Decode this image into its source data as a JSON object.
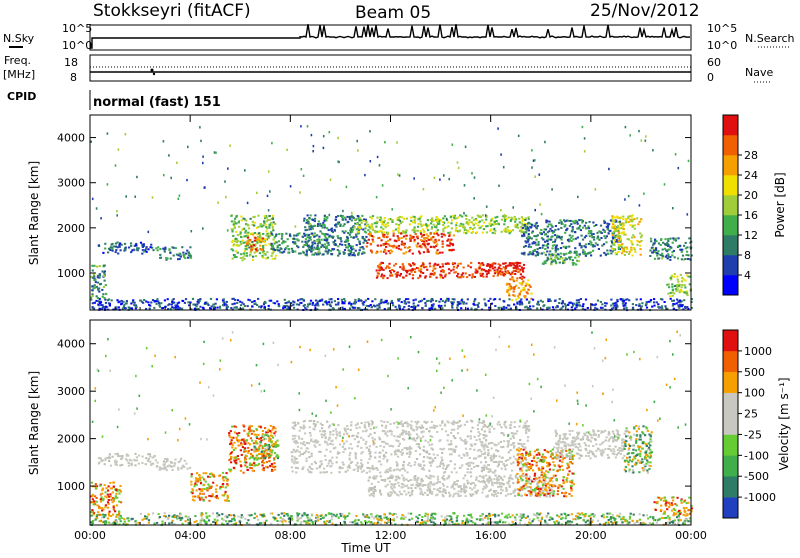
{
  "header": {
    "station": "Stokkseyri (fitACF)",
    "beam": "Beam 05",
    "date": "25/Nov/2012"
  },
  "strips": {
    "nsky_label": "N.Sky",
    "nsearch_label": "N.Search",
    "freq_label": "Freq.",
    "freq_unit": "[MHz]",
    "nave_label": "Nave",
    "cpid_label": "CPID",
    "cpid_text": "normal (fast) 151",
    "noise_ticks_left": [
      "10^5",
      "10^0"
    ],
    "noise_ticks_right": [
      "10^5",
      "10^0"
    ],
    "freq_ticks_left": [
      "18",
      "8"
    ],
    "nave_ticks_right": [
      "60",
      "0"
    ]
  },
  "chart_data": [
    {
      "type": "heatmap",
      "name": "power",
      "ylabel": "Slant Range [km]",
      "ylim": [
        180,
        4500
      ],
      "yticks": [
        "1000",
        "2000",
        "3000",
        "4000"
      ],
      "xlim": [
        0,
        24
      ],
      "xticks": [
        "00:00",
        "04:00",
        "08:00",
        "12:00",
        "16:00",
        "20:00",
        "00:00"
      ],
      "colorbar": {
        "label": "Power [dB]",
        "ticks": [
          "4",
          "8",
          "12",
          "16",
          "20",
          "24",
          "28"
        ],
        "range": [
          0,
          30
        ],
        "colors": [
          "#0000ff",
          "#1f3fae",
          "#2e7b66",
          "#3fae4b",
          "#9fce3a",
          "#f0e000",
          "#f5a000",
          "#f06000",
          "#e01010"
        ]
      },
      "regions": [
        {
          "x0": 0.3,
          "x1": 2.5,
          "y0": 1450,
          "y1": 1700,
          "v": 6
        },
        {
          "x0": 2.6,
          "x1": 4.0,
          "y0": 1300,
          "y1": 1600,
          "v": 8
        },
        {
          "x0": 5.6,
          "x1": 7.4,
          "y0": 1300,
          "y1": 2300,
          "v": 14
        },
        {
          "x0": 6.2,
          "x1": 6.9,
          "y0": 1500,
          "y1": 1900,
          "v": 24
        },
        {
          "x0": 7.2,
          "x1": 9.5,
          "y0": 1450,
          "y1": 1900,
          "v": 9
        },
        {
          "x0": 8.5,
          "x1": 11.0,
          "y0": 1400,
          "y1": 2300,
          "v": 8
        },
        {
          "x0": 10.5,
          "x1": 17.5,
          "y0": 1900,
          "y1": 2300,
          "v": 15
        },
        {
          "x0": 11.0,
          "x1": 14.5,
          "y0": 1450,
          "y1": 1900,
          "v": 26
        },
        {
          "x0": 11.4,
          "x1": 17.3,
          "y0": 900,
          "y1": 1250,
          "v": 27
        },
        {
          "x0": 15.6,
          "x1": 17.3,
          "y0": 1050,
          "y1": 1250,
          "v": 29
        },
        {
          "x0": 16.6,
          "x1": 17.6,
          "y0": 400,
          "y1": 900,
          "v": 22
        },
        {
          "x0": 17.2,
          "x1": 21.2,
          "y0": 1400,
          "y1": 2200,
          "v": 8
        },
        {
          "x0": 18.0,
          "x1": 19.5,
          "y0": 1200,
          "y1": 1500,
          "v": 11
        },
        {
          "x0": 20.8,
          "x1": 22.0,
          "y0": 1400,
          "y1": 2300,
          "v": 18
        },
        {
          "x0": 22.3,
          "x1": 24.0,
          "y0": 1300,
          "y1": 1800,
          "v": 9
        },
        {
          "x0": 0.0,
          "x1": 24.0,
          "y0": 200,
          "y1": 450,
          "v": 5
        },
        {
          "x0": 0.0,
          "x1": 0.6,
          "y0": 450,
          "y1": 1200,
          "v": 10
        },
        {
          "x0": 23.0,
          "x1": 24.0,
          "y0": 500,
          "y1": 1000,
          "v": 14
        }
      ]
    },
    {
      "type": "heatmap",
      "name": "velocity",
      "ylabel": "Slant Range [km]",
      "ylim": [
        180,
        4500
      ],
      "yticks": [
        "1000",
        "2000",
        "3000",
        "4000"
      ],
      "xlabel": "Time UT",
      "xlim": [
        0,
        24
      ],
      "xticks": [
        "00:00",
        "04:00",
        "08:00",
        "12:00",
        "16:00",
        "20:00",
        "00:00"
      ],
      "colorbar": {
        "label": "Velocity [m s⁻¹]",
        "ticks": [
          "1000",
          "500",
          "100",
          "25",
          "-25",
          "-100",
          "-500",
          "-1000"
        ],
        "colors": [
          "#2040c0",
          "#2e7b66",
          "#3fae4b",
          "#66cc33",
          "#c8c8c0",
          "#c8c8c0",
          "#f5a000",
          "#f06000",
          "#e01010"
        ]
      },
      "regions": [
        {
          "x0": 0.3,
          "x1": 2.6,
          "y0": 1450,
          "y1": 1700,
          "c": "ground"
        },
        {
          "x0": 2.6,
          "x1": 4.0,
          "y0": 1350,
          "y1": 1600,
          "c": "ground"
        },
        {
          "x0": 4.0,
          "x1": 5.5,
          "y0": 700,
          "y1": 1300,
          "c": "orange"
        },
        {
          "x0": 5.5,
          "x1": 7.4,
          "y0": 1300,
          "y1": 2300,
          "c": "orange"
        },
        {
          "x0": 6.5,
          "x1": 7.5,
          "y0": 1600,
          "y1": 2100,
          "c": "green"
        },
        {
          "x0": 8.0,
          "x1": 17.5,
          "y0": 1300,
          "y1": 2400,
          "c": "ground"
        },
        {
          "x0": 11.0,
          "x1": 18.5,
          "y0": 800,
          "y1": 1250,
          "c": "ground"
        },
        {
          "x0": 17.0,
          "x1": 19.3,
          "y0": 800,
          "y1": 1800,
          "c": "orange"
        },
        {
          "x0": 18.5,
          "x1": 21.5,
          "y0": 1600,
          "y1": 2200,
          "c": "ground"
        },
        {
          "x0": 21.3,
          "x1": 22.4,
          "y0": 1300,
          "y1": 2300,
          "c": "green"
        },
        {
          "x0": 22.5,
          "x1": 24.0,
          "y0": 400,
          "y1": 800,
          "c": "orange"
        },
        {
          "x0": 0.0,
          "x1": 1.2,
          "y0": 400,
          "y1": 1100,
          "c": "orange"
        },
        {
          "x0": 0.0,
          "x1": 24.0,
          "y0": 200,
          "y1": 450,
          "c": "green"
        }
      ]
    }
  ]
}
